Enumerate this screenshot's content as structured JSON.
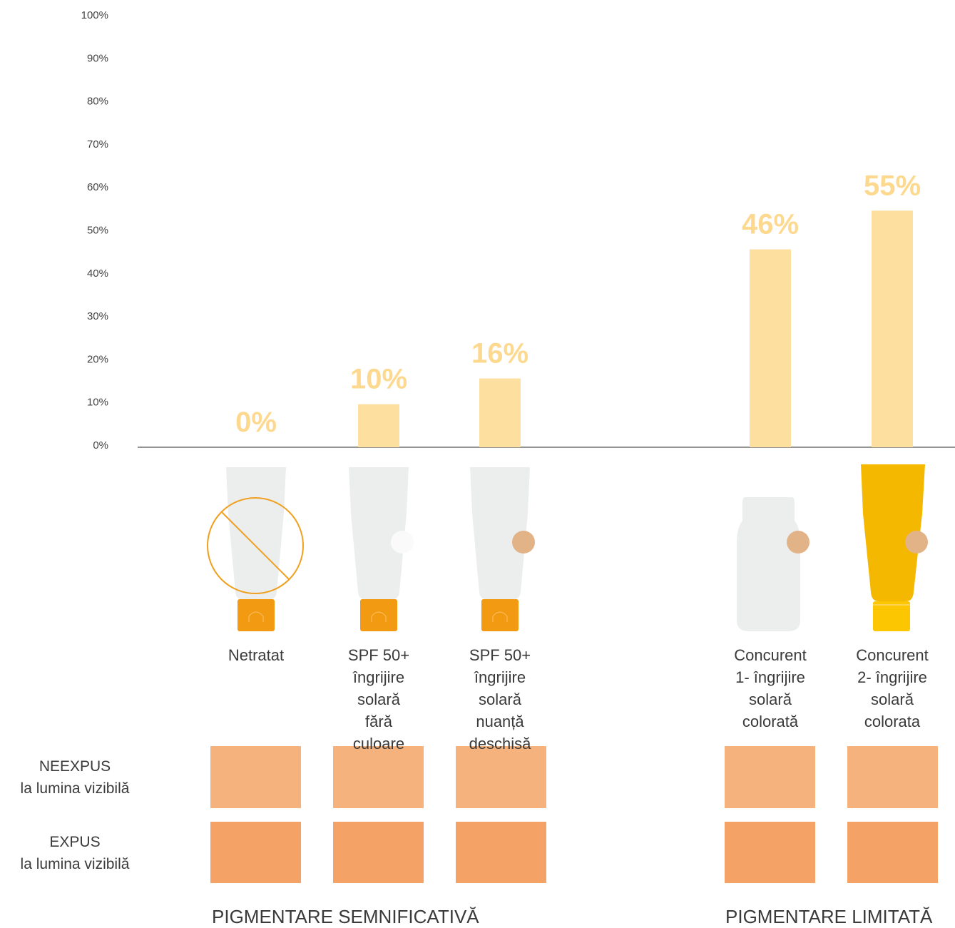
{
  "chart_data": {
    "type": "bar",
    "categories": [
      "Netratat",
      "SPF 50+\nîngrijire\nsolară\nfără\nculoare",
      "SPF 50+\nîngrijire\nsolară\nnuanță\ndeschisă",
      "Concurent\n1- îngrijire\nsolară\ncolorată",
      "Concurent\n2- îngrijire\nsolară\ncolorata"
    ],
    "values": [
      0,
      10,
      16,
      46,
      55
    ],
    "value_labels": [
      "0%",
      "10%",
      "16%",
      "46%",
      "55%"
    ],
    "color": "#fddfa0",
    "ylim": [
      0,
      100
    ],
    "yticks": [
      {
        "value": 0,
        "label": "0%"
      },
      {
        "value": 10,
        "label": "10%"
      },
      {
        "value": 20,
        "label": "20%"
      },
      {
        "value": 30,
        "label": "30%"
      },
      {
        "value": 40,
        "label": "40%"
      },
      {
        "value": 50,
        "label": "50%"
      },
      {
        "value": 60,
        "label": "60%"
      },
      {
        "value": 70,
        "label": "70%"
      },
      {
        "value": 80,
        "label": "80%"
      },
      {
        "value": 90,
        "label": "90%"
      },
      {
        "value": 100,
        "label": "100%"
      }
    ],
    "grid": false,
    "row_labels": [
      "NEEXPUS\nla lumina vizibilă",
      "EXPUS\nla lumina vizibilă"
    ],
    "group_labels": [
      "PIGMENTARE SEMNIFICATIVĂ",
      "PIGMENTARE LIMITATĂ"
    ]
  }
}
